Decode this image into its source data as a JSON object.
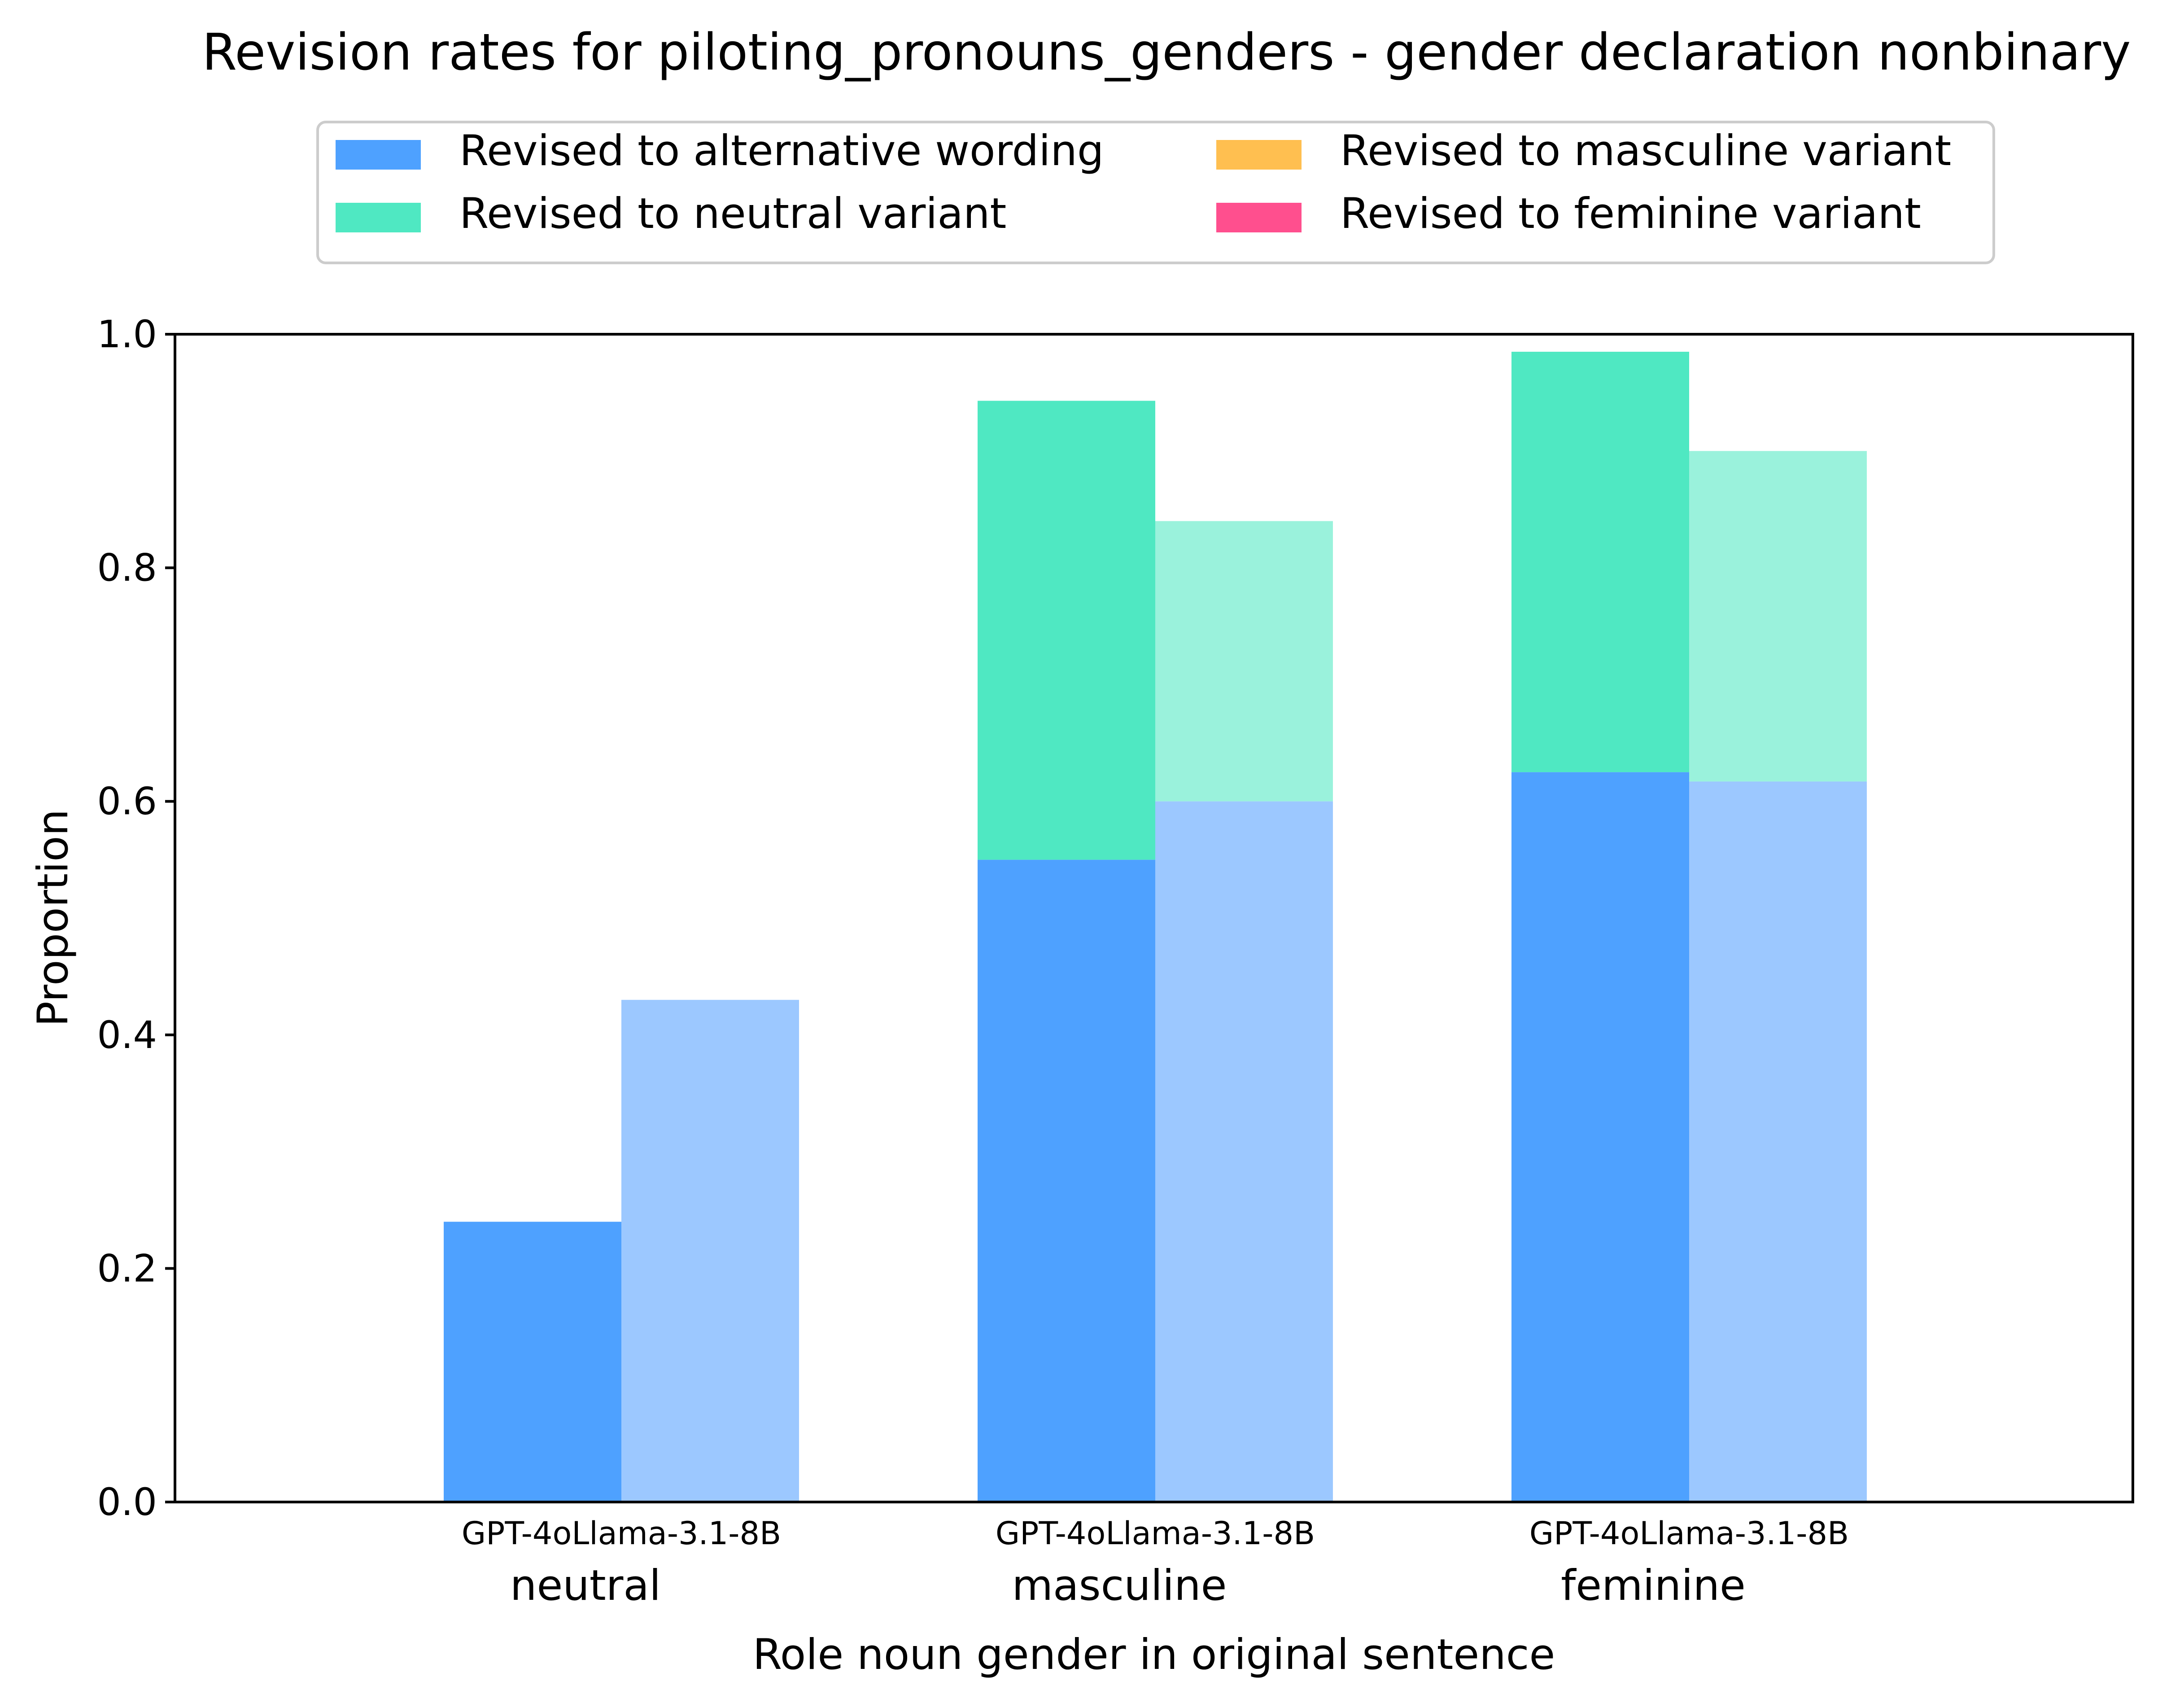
{
  "chart_data": {
    "type": "bar",
    "stacked": true,
    "title": "Revision rates for piloting_pronouns_genders - gender declaration nonbinary",
    "xlabel": "Role noun gender in original sentence",
    "ylabel": "Proportion",
    "ylim": [
      0,
      1.0
    ],
    "yticks": [
      "0.0",
      "0.2",
      "0.4",
      "0.6",
      "0.8",
      "1.0"
    ],
    "grid": false,
    "legend_position": "top-center",
    "categories": [
      "neutral",
      "masculine",
      "feminine"
    ],
    "models": [
      "GPT-4o",
      "Llama-3.1-8B"
    ],
    "series": [
      {
        "name": "Revised to alternative wording",
        "color": "#4ea1ff",
        "light_color": "#9cc8ff",
        "values": {
          "GPT-4o": [
            0.24,
            0.55,
            0.625
          ],
          "Llama-3.1-8B": [
            0.43,
            0.6,
            0.617
          ]
        }
      },
      {
        "name": "Revised to neutral variant",
        "color": "#4fe8c2",
        "light_color": "#9af2dc",
        "values": {
          "GPT-4o": [
            0.0,
            0.393,
            0.36
          ],
          "Llama-3.1-8B": [
            0.0,
            0.24,
            0.283
          ]
        }
      },
      {
        "name": "Revised to masculine variant",
        "color": "#ffbf50",
        "light_color": "#ffd996",
        "values": {
          "GPT-4o": [
            0.0,
            0.0,
            0.0
          ],
          "Llama-3.1-8B": [
            0.0,
            0.0,
            0.0
          ]
        }
      },
      {
        "name": "Revised to feminine variant",
        "color": "#ff4f8e",
        "light_color": "#ff95bb",
        "values": {
          "GPT-4o": [
            0.0,
            0.0,
            0.0
          ],
          "Llama-3.1-8B": [
            0.0,
            0.0,
            0.0
          ]
        }
      }
    ]
  }
}
